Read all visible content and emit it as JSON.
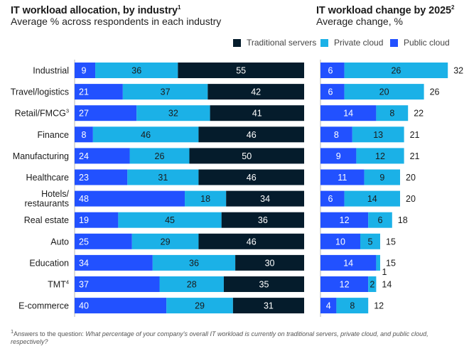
{
  "left_title": {
    "text": "IT workload allocation, by industry",
    "sup": "1"
  },
  "left_subtitle": "Average % across respondents in each industry",
  "right_title": {
    "text": "IT workload change by 2025",
    "sup": "2"
  },
  "right_subtitle": "Average change, %",
  "legend": [
    {
      "label": "Traditional servers",
      "color": "#051c2c"
    },
    {
      "label": "Private cloud",
      "color": "#1bb1e7"
    },
    {
      "label": "Public cloud",
      "color": "#2251ff"
    }
  ],
  "footnote": {
    "sup": "1",
    "prefix": "Answers to the question: ",
    "question": "What percentage of your company's overall IT workload is currently on traditional servers, private cloud, and public cloud, respectively?"
  },
  "chart_data": [
    {
      "type": "bar",
      "orientation": "horizontal",
      "stacked": true,
      "title": "IT workload allocation, by industry",
      "subtitle": "Average % across respondents in each industry",
      "xlim": [
        0,
        100
      ],
      "categories": [
        {
          "name": "Industrial"
        },
        {
          "name": "Travel/logistics"
        },
        {
          "name": "Retail/FMCG",
          "sup": "3"
        },
        {
          "name": "Finance"
        },
        {
          "name": "Manufacturing"
        },
        {
          "name": "Healthcare"
        },
        {
          "name": "Hotels/\nrestaurants"
        },
        {
          "name": "Real estate"
        },
        {
          "name": "Auto"
        },
        {
          "name": "Education"
        },
        {
          "name": "TMT",
          "sup": "4"
        },
        {
          "name": "E-commerce"
        }
      ],
      "series": [
        {
          "name": "Public cloud",
          "color": "#2251ff",
          "values": [
            9,
            21,
            27,
            8,
            24,
            23,
            48,
            19,
            25,
            34,
            37,
            40
          ]
        },
        {
          "name": "Private cloud",
          "color": "#1bb1e7",
          "values": [
            36,
            37,
            32,
            46,
            26,
            31,
            18,
            45,
            29,
            36,
            28,
            29
          ]
        },
        {
          "name": "Traditional servers",
          "color": "#051c2c",
          "values": [
            55,
            42,
            41,
            46,
            50,
            46,
            34,
            36,
            46,
            30,
            35,
            31
          ]
        }
      ]
    },
    {
      "type": "bar",
      "orientation": "horizontal",
      "stacked": true,
      "title": "IT workload change by 2025",
      "subtitle": "Average change, %",
      "xlim": [
        0,
        32
      ],
      "series": [
        {
          "name": "Public cloud",
          "color": "#2251ff",
          "values": [
            6,
            6,
            14,
            8,
            9,
            11,
            6,
            12,
            10,
            14,
            12,
            4
          ]
        },
        {
          "name": "Private cloud",
          "color": "#1bb1e7",
          "values": [
            26,
            20,
            8,
            13,
            12,
            9,
            14,
            6,
            5,
            1,
            2,
            8
          ]
        }
      ],
      "totals": [
        32,
        26,
        22,
        21,
        21,
        20,
        20,
        18,
        15,
        15,
        14,
        12
      ]
    }
  ]
}
